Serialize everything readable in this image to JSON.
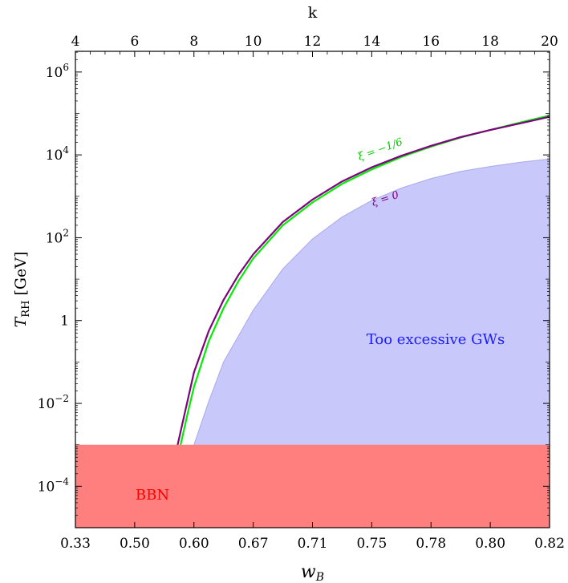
{
  "chart_data": {
    "type": "area",
    "title": "",
    "ylabel": "T_RH [GeV]",
    "ylabel_main": "T",
    "ylabel_sub": "RH",
    "ylabel_unit": " [GeV]",
    "xlabel_bottom": "w_B",
    "xlabel_bottom_main": "w",
    "xlabel_bottom_sub": "B",
    "xlabel_top": "k",
    "x_top_range": [
      4,
      20
    ],
    "y_scale": "log",
    "y_log_range": [
      -5,
      6.5
    ],
    "grid": false,
    "top_ticks": [
      {
        "value": 4,
        "label": "4"
      },
      {
        "value": 6,
        "label": "6"
      },
      {
        "value": 8,
        "label": "8"
      },
      {
        "value": 10,
        "label": "10"
      },
      {
        "value": 12,
        "label": "12"
      },
      {
        "value": 14,
        "label": "14"
      },
      {
        "value": 16,
        "label": "16"
      },
      {
        "value": 18,
        "label": "18"
      },
      {
        "value": 20,
        "label": "20"
      }
    ],
    "bottom_ticks": [
      {
        "k": 4,
        "label": "0.33"
      },
      {
        "k": 6,
        "label": "0.50"
      },
      {
        "k": 8,
        "label": "0.60"
      },
      {
        "k": 10,
        "label": "0.67"
      },
      {
        "k": 12,
        "label": "0.71"
      },
      {
        "k": 14,
        "label": "0.75"
      },
      {
        "k": 16,
        "label": "0.78"
      },
      {
        "k": 18,
        "label": "0.80"
      },
      {
        "k": 20,
        "label": "0.82"
      }
    ],
    "y_ticks": [
      {
        "exp": 6,
        "base": "10",
        "sup": "6"
      },
      {
        "exp": 4,
        "base": "10",
        "sup": "4"
      },
      {
        "exp": 2,
        "base": "10",
        "sup": "2"
      },
      {
        "exp": 0,
        "base": "1",
        "sup": ""
      },
      {
        "exp": -2,
        "base": "10",
        "sup": "−2"
      },
      {
        "exp": -4,
        "base": "10",
        "sup": "−4"
      }
    ],
    "regions": [
      {
        "name": "BBN",
        "label": "BBN",
        "color": "#ff7f7f",
        "label_color": "#ff0000",
        "y_log_range": [
          -5,
          -3
        ]
      },
      {
        "name": "excessive-gw",
        "label": "Too excessive GWs",
        "color": "#c8c8fa",
        "label_color": "#1a1aff",
        "boundary_k": [
          8.0,
          8.5,
          9,
          10,
          11,
          12,
          13,
          14,
          15,
          16,
          17,
          18,
          19,
          20
        ],
        "boundary_log10T": [
          -3.0,
          -1.95,
          -1.0,
          0.25,
          1.25,
          1.97,
          2.5,
          2.9,
          3.2,
          3.43,
          3.6,
          3.72,
          3.82,
          3.9
        ]
      }
    ],
    "series": [
      {
        "name": "ξ = −1/6",
        "color": "#00ee00",
        "k": [
          7.55,
          7.8,
          8,
          8.5,
          9,
          9.5,
          10,
          11,
          12,
          13,
          14,
          15,
          16,
          17,
          18,
          19,
          20
        ],
        "log10T": [
          -3.0,
          -2.2,
          -1.6,
          -0.5,
          0.3,
          0.95,
          1.5,
          2.3,
          2.85,
          3.3,
          3.65,
          3.95,
          4.2,
          4.42,
          4.6,
          4.78,
          4.95
        ]
      },
      {
        "name": "ξ = 0",
        "color": "#800080",
        "k": [
          7.45,
          7.7,
          8,
          8.5,
          9,
          9.5,
          10,
          11,
          12,
          13,
          14,
          15,
          16,
          17,
          18,
          19,
          20
        ],
        "log10T": [
          -3.0,
          -2.2,
          -1.25,
          -0.25,
          0.5,
          1.1,
          1.6,
          2.38,
          2.92,
          3.36,
          3.7,
          3.98,
          4.22,
          4.43,
          4.6,
          4.76,
          4.92
        ]
      }
    ]
  }
}
